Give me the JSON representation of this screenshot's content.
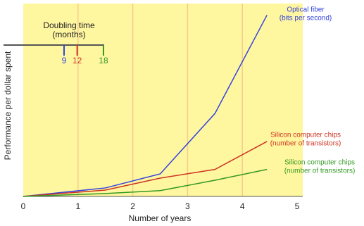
{
  "chart_data": {
    "type": "line",
    "x_label": "Number of years",
    "y_label": "Performance per dollar spent",
    "xlim": [
      0,
      5
    ],
    "xticks": [
      0,
      1,
      2,
      3,
      4,
      5
    ],
    "ylim": [
      0,
      100
    ],
    "grid": true,
    "x": [
      0,
      1.5,
      2.5,
      3.5,
      4.45
    ],
    "series": [
      {
        "name": "Optical fiber",
        "unit": "(bits per second)",
        "color": "#3344dd",
        "values": [
          0,
          4.4,
          11.7,
          43,
          94
        ]
      },
      {
        "name": "Silicon computer chips",
        "unit": "(number of transistors)",
        "color": "#cc3322",
        "values": [
          0,
          3.3,
          9.5,
          14,
          28.5
        ]
      },
      {
        "name": "Silicon computer chips",
        "unit": "(number of transistors)",
        "color": "#339922",
        "values": [
          0,
          1.5,
          3,
          8.4,
          14
        ]
      }
    ],
    "doubling": {
      "title": "Doubling time",
      "unit": "(months)",
      "values": [
        9,
        12,
        18
      ]
    }
  }
}
